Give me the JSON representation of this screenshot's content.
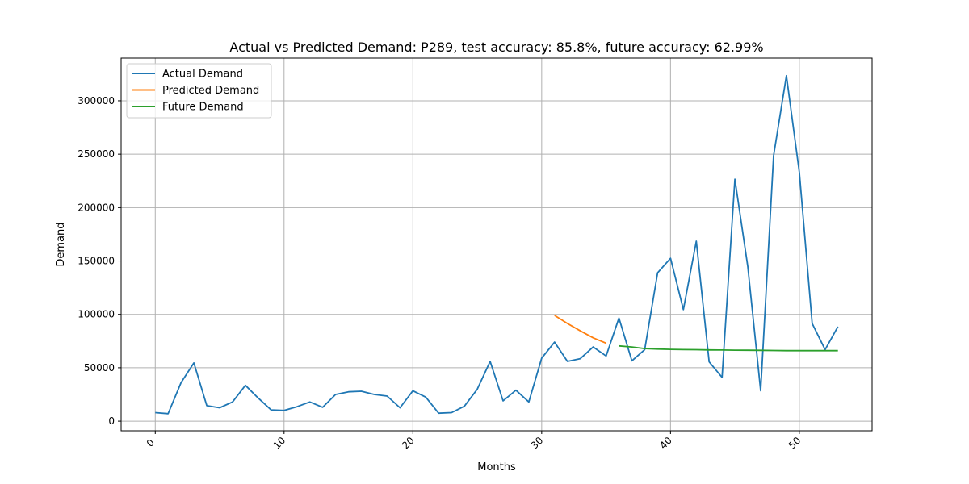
{
  "chart_data": {
    "type": "line",
    "title": "Actual vs Predicted Demand: P289, test accuracy: 85.8%, future accuracy: 62.99%",
    "xlabel": "Months",
    "ylabel": "Demand",
    "xlim": [
      -2.65,
      55.65
    ],
    "ylim": [
      -9000,
      340000
    ],
    "xticks": [
      0,
      10,
      20,
      30,
      40,
      50
    ],
    "yticks": [
      0,
      50000,
      100000,
      150000,
      200000,
      250000,
      300000
    ],
    "xtick_labels": [
      "0",
      "10",
      "20",
      "30",
      "40",
      "50"
    ],
    "ytick_labels": [
      "0",
      "50000",
      "100000",
      "150000",
      "200000",
      "250000",
      "300000"
    ],
    "grid": true,
    "legend_position": "top-left",
    "series": [
      {
        "name": "Actual Demand",
        "color": "#1f77b4",
        "x": [
          0,
          1,
          2,
          3,
          4,
          5,
          6,
          7,
          8,
          9,
          10,
          11,
          12,
          13,
          14,
          15,
          16,
          17,
          18,
          19,
          20,
          21,
          22,
          23,
          24,
          25,
          26,
          27,
          28,
          29,
          30,
          31,
          32,
          33,
          34,
          35,
          36,
          37,
          38,
          39,
          40,
          41,
          42,
          43,
          44,
          45,
          46,
          47,
          48,
          49,
          50,
          51,
          52,
          53
        ],
        "y": [
          8000,
          7000,
          36000,
          54500,
          14500,
          12500,
          18000,
          33500,
          21500,
          10500,
          10000,
          13500,
          18000,
          13000,
          25000,
          27500,
          28000,
          25000,
          23500,
          12500,
          28500,
          22500,
          7500,
          8000,
          14000,
          30000,
          56000,
          19000,
          29000,
          18000,
          59000,
          74000,
          56000,
          58500,
          69500,
          61000,
          96500,
          56500,
          67000,
          139000,
          152500,
          104500,
          168500,
          55500,
          41000,
          226500,
          144500,
          28500,
          248500,
          323500,
          233000,
          91500,
          67000,
          88500
        ]
      },
      {
        "name": "Predicted Demand",
        "color": "#ff7f0e",
        "x": [
          31,
          32,
          33,
          34,
          35
        ],
        "y": [
          99000,
          91500,
          84500,
          78000,
          73000
        ]
      },
      {
        "name": "Future Demand",
        "color": "#2ca02c",
        "x": [
          36,
          37,
          38,
          39,
          40,
          41,
          42,
          43,
          44,
          45,
          46,
          47,
          48,
          49,
          50,
          51,
          52,
          53
        ],
        "y": [
          70500,
          69500,
          68000,
          67500,
          67200,
          67000,
          66900,
          66700,
          66600,
          66500,
          66400,
          66300,
          66200,
          66000,
          66000,
          66000,
          66000,
          66000
        ]
      }
    ]
  }
}
